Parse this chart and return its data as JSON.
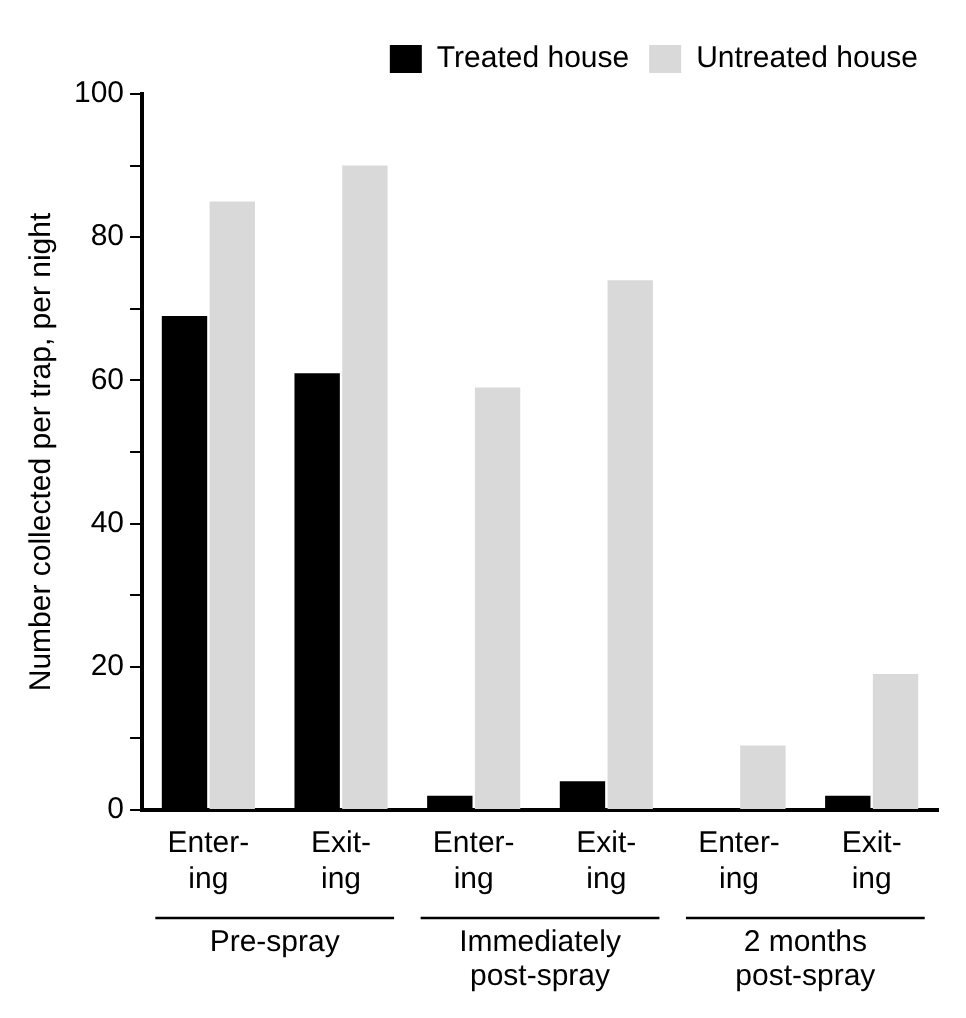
{
  "chart_data": {
    "type": "bar",
    "ylabel": "Number collected per trap, per night",
    "categories": [
      "Enter-\ning",
      "Exit-\ning",
      "Enter-\ning",
      "Exit-\ning",
      "Enter-\ning",
      "Exit-\ning"
    ],
    "series": [
      {
        "name": "Treated house",
        "color": "#000000",
        "values": [
          69,
          61,
          2,
          4,
          0,
          2
        ]
      },
      {
        "name": "Untreated house",
        "color": "#d9d9d9",
        "values": [
          85,
          90,
          59,
          74,
          9,
          19
        ]
      }
    ],
    "ylim": [
      0,
      100
    ],
    "yticks": [
      0,
      {
        "value": 10,
        "label": null
      },
      20,
      {
        "value": 30,
        "label": null
      },
      40,
      {
        "value": 50,
        "label": null
      },
      60,
      {
        "value": 70,
        "label": null
      },
      80,
      {
        "value": 90,
        "label": null
      },
      100
    ],
    "annotations": [
      "Pre-spray",
      "Immediately\npost-spray",
      "2 months\npost-spray"
    ],
    "grid": false,
    "legend": "top right"
  }
}
